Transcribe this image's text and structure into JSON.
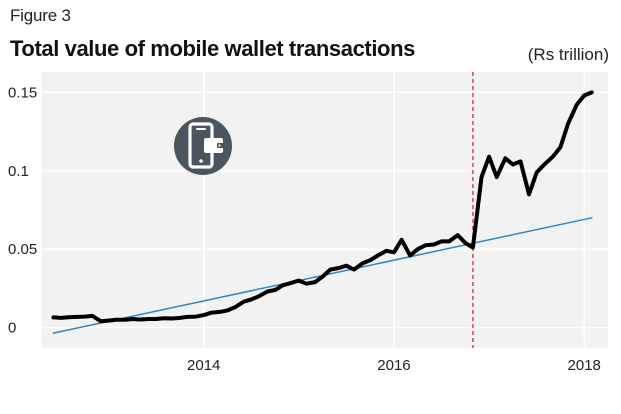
{
  "figure_label": "Figure 3",
  "title": "Total value of mobile wallet transactions",
  "units_label": "(Rs trillion)",
  "icon": "mobile-wallet-icon",
  "colors": {
    "plot_background": "#f2f2f2",
    "gridline": "#ffffff",
    "series_line": "#000000",
    "trend_line": "#2f86c9",
    "event_line": "#d01c2c",
    "icon_circle": "#4a5560"
  },
  "chart_data": {
    "type": "line",
    "title": "Total value of mobile wallet transactions",
    "xlabel": "",
    "ylabel": "(Rs trillion)",
    "xlim": [
      2012.3,
      2018.25
    ],
    "ylim": [
      -0.013,
      0.163
    ],
    "x_ticks": [
      2014,
      2016,
      2018
    ],
    "x_tick_labels": [
      "2014",
      "2016",
      "2018"
    ],
    "y_ticks": [
      0,
      0.05,
      0.1,
      0.15
    ],
    "y_tick_labels": [
      "0",
      "0.05",
      "0.1",
      "0.15"
    ],
    "grid": true,
    "legend": "none",
    "series": [
      {
        "style": "solid-thick",
        "color": "#000000",
        "x": [
          2012.42,
          2012.5,
          2012.58,
          2012.67,
          2012.75,
          2012.83,
          2012.92,
          2013.0,
          2013.08,
          2013.17,
          2013.25,
          2013.33,
          2013.42,
          2013.5,
          2013.58,
          2013.67,
          2013.75,
          2013.83,
          2013.92,
          2014.0,
          2014.08,
          2014.17,
          2014.25,
          2014.33,
          2014.42,
          2014.5,
          2014.58,
          2014.67,
          2014.75,
          2014.83,
          2014.92,
          2015.0,
          2015.08,
          2015.17,
          2015.25,
          2015.33,
          2015.42,
          2015.5,
          2015.58,
          2015.67,
          2015.75,
          2015.83,
          2015.92,
          2016.0,
          2016.08,
          2016.17,
          2016.25,
          2016.33,
          2016.42,
          2016.5,
          2016.58,
          2016.67,
          2016.75,
          2016.83,
          2016.92,
          2017.0,
          2017.08,
          2017.17,
          2017.25,
          2017.33,
          2017.42,
          2017.5,
          2017.58,
          2017.67,
          2017.75,
          2017.83,
          2017.92,
          2018.0,
          2018.08
        ],
        "y": [
          0.0065,
          0.0062,
          0.0066,
          0.0068,
          0.007,
          0.0075,
          0.004,
          0.0045,
          0.005,
          0.005,
          0.0055,
          0.0052,
          0.0055,
          0.0055,
          0.006,
          0.0058,
          0.0062,
          0.0068,
          0.007,
          0.008,
          0.0095,
          0.01,
          0.011,
          0.013,
          0.0165,
          0.018,
          0.02,
          0.023,
          0.024,
          0.027,
          0.0285,
          0.03,
          0.028,
          0.029,
          0.0325,
          0.037,
          0.038,
          0.0395,
          0.037,
          0.041,
          0.043,
          0.046,
          0.049,
          0.048,
          0.056,
          0.046,
          0.05,
          0.0525,
          0.053,
          0.055,
          0.055,
          0.059,
          0.054,
          0.051,
          0.096,
          0.109,
          0.096,
          0.108,
          0.104,
          0.106,
          0.085,
          0.099,
          0.104,
          0.109,
          0.115,
          0.13,
          0.142,
          0.148,
          0.15
        ]
      },
      {
        "style": "solid-thin",
        "color": "#2f86c9",
        "x": [
          2012.42,
          2018.08
        ],
        "y": [
          -0.0035,
          0.07
        ]
      }
    ],
    "reference_lines": [
      {
        "orientation": "vertical",
        "x": 2016.83,
        "style": "dashed",
        "color": "#d01c2c"
      }
    ]
  }
}
